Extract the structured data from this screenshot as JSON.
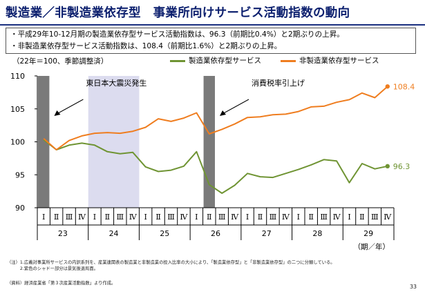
{
  "title": "製造業／非製造業依存型　事業所向けサービス活動指数の動向",
  "summary": [
    "・平成29年10-12月期の製造業依存型サービス活動指数は、96.3（前期比0.4%）と2期ぶりの上昇。",
    "・非製造業依存型サービス活動指数は、108.4（前期比1.6%）と2期ぶりの上昇。"
  ],
  "unit_note": "（22年＝100、季節調整済）",
  "colors": {
    "manufacturing": "#6f9433",
    "non_manufacturing": "#ef7d1f",
    "shadow_gray": "#7a7a7a",
    "shadow_purple": "#dcdcef"
  },
  "chart_data": {
    "type": "line",
    "ylim": [
      90,
      110
    ],
    "yticks": [
      90,
      95,
      100,
      105,
      110
    ],
    "x_quarters": [
      "Ⅰ",
      "Ⅱ",
      "Ⅲ",
      "Ⅳ",
      "Ⅰ",
      "Ⅱ",
      "Ⅲ",
      "Ⅳ",
      "Ⅰ",
      "Ⅱ",
      "Ⅲ",
      "Ⅳ",
      "Ⅰ",
      "Ⅱ",
      "Ⅲ",
      "Ⅳ",
      "Ⅰ",
      "Ⅱ",
      "Ⅲ",
      "Ⅳ",
      "Ⅰ",
      "Ⅱ",
      "Ⅲ",
      "Ⅳ",
      "Ⅰ",
      "Ⅱ",
      "Ⅲ",
      "Ⅳ"
    ],
    "x_years": [
      "23",
      "24",
      "25",
      "26",
      "27",
      "28",
      "29"
    ],
    "x_axis_label": "（期／年）",
    "series": [
      {
        "name": "製造業依存型サービス",
        "key": "manufacturing",
        "values": [
          100.3,
          98.8,
          99.5,
          99.8,
          99.5,
          98.5,
          98.2,
          98.4,
          96.2,
          95.5,
          95.7,
          96.3,
          98.5,
          93.5,
          92.2,
          93.4,
          95.2,
          94.7,
          94.6,
          95.2,
          95.8,
          96.5,
          97.3,
          97.1,
          93.8,
          96.7,
          95.9,
          96.3
        ],
        "end_label": "96.3"
      },
      {
        "name": "非製造業依存型サービス",
        "key": "non_manufacturing",
        "values": [
          100.5,
          98.8,
          100.2,
          100.9,
          101.3,
          101.4,
          101.3,
          101.6,
          102.2,
          103.5,
          103.1,
          103.6,
          104.4,
          101.2,
          101.9,
          102.7,
          103.7,
          103.8,
          104.1,
          104.2,
          104.6,
          105.3,
          105.4,
          106.0,
          106.4,
          107.4,
          106.7,
          108.4
        ],
        "end_label": "108.4"
      }
    ],
    "shaded_periods": [
      {
        "start_index": 0,
        "end_index": 0,
        "style": "gray"
      },
      {
        "start_index": 4,
        "end_index": 7,
        "style": "purple"
      },
      {
        "start_index": 13,
        "end_index": 13,
        "style": "gray"
      }
    ],
    "annotations": [
      {
        "text": "東日本大震災発生",
        "anchor_index": 0
      },
      {
        "text": "消費税率引上げ",
        "anchor_index": 13
      }
    ]
  },
  "notes": [
    "（注）1.広義対事業所サービスの内訳系列を、産業連関表の製造業と非製造業の投入比率の大小により、「製造業依存型」と「非製造業依存型」の二つに分類している。",
    "　　　2.紫色のシャドー部分は景気後退局面。"
  ],
  "source": "（資料）経済産業省「第３次産業活動指数」より作成。",
  "page_number": "33"
}
